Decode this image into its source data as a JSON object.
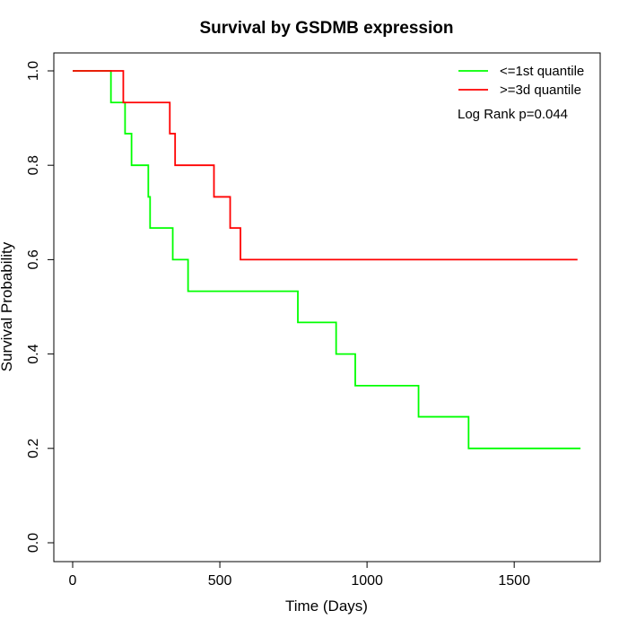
{
  "chart_data": {
    "type": "line",
    "title": "Survival by GSDMB expression",
    "xlabel": "Time (Days)",
    "ylabel": "Survival Probability",
    "xlim": [
      0,
      1780
    ],
    "ylim": [
      0,
      1.0
    ],
    "x_ticks": [
      0,
      500,
      1000,
      1500
    ],
    "y_ticks": [
      0.0,
      0.2,
      0.4,
      0.6,
      0.8,
      1.0
    ],
    "x_tick_labels": [
      "0",
      "500",
      "1000",
      "1500"
    ],
    "y_tick_labels": [
      "0.0",
      "0.2",
      "0.4",
      "0.6",
      "0.8",
      "1.0"
    ],
    "grid": false,
    "legend_position": "top-right",
    "annotation": "Log Rank p=0.044",
    "series": [
      {
        "name": "<=1st quantile",
        "color": "#00ff00",
        "step": true,
        "points": [
          [
            0,
            1.0
          ],
          [
            130,
            0.933
          ],
          [
            178,
            0.867
          ],
          [
            200,
            0.8
          ],
          [
            257,
            0.733
          ],
          [
            263,
            0.667
          ],
          [
            340,
            0.6
          ],
          [
            392,
            0.533
          ],
          [
            765,
            0.467
          ],
          [
            895,
            0.4
          ],
          [
            960,
            0.333
          ],
          [
            1175,
            0.267
          ],
          [
            1345,
            0.2
          ],
          [
            1725,
            0.2
          ]
        ]
      },
      {
        "name": ">=3d quantile",
        "color": "#ff0000",
        "step": true,
        "points": [
          [
            0,
            1.0
          ],
          [
            172,
            0.933
          ],
          [
            330,
            0.867
          ],
          [
            348,
            0.8
          ],
          [
            480,
            0.733
          ],
          [
            535,
            0.667
          ],
          [
            570,
            0.6
          ],
          [
            1715,
            0.6
          ]
        ]
      }
    ]
  }
}
